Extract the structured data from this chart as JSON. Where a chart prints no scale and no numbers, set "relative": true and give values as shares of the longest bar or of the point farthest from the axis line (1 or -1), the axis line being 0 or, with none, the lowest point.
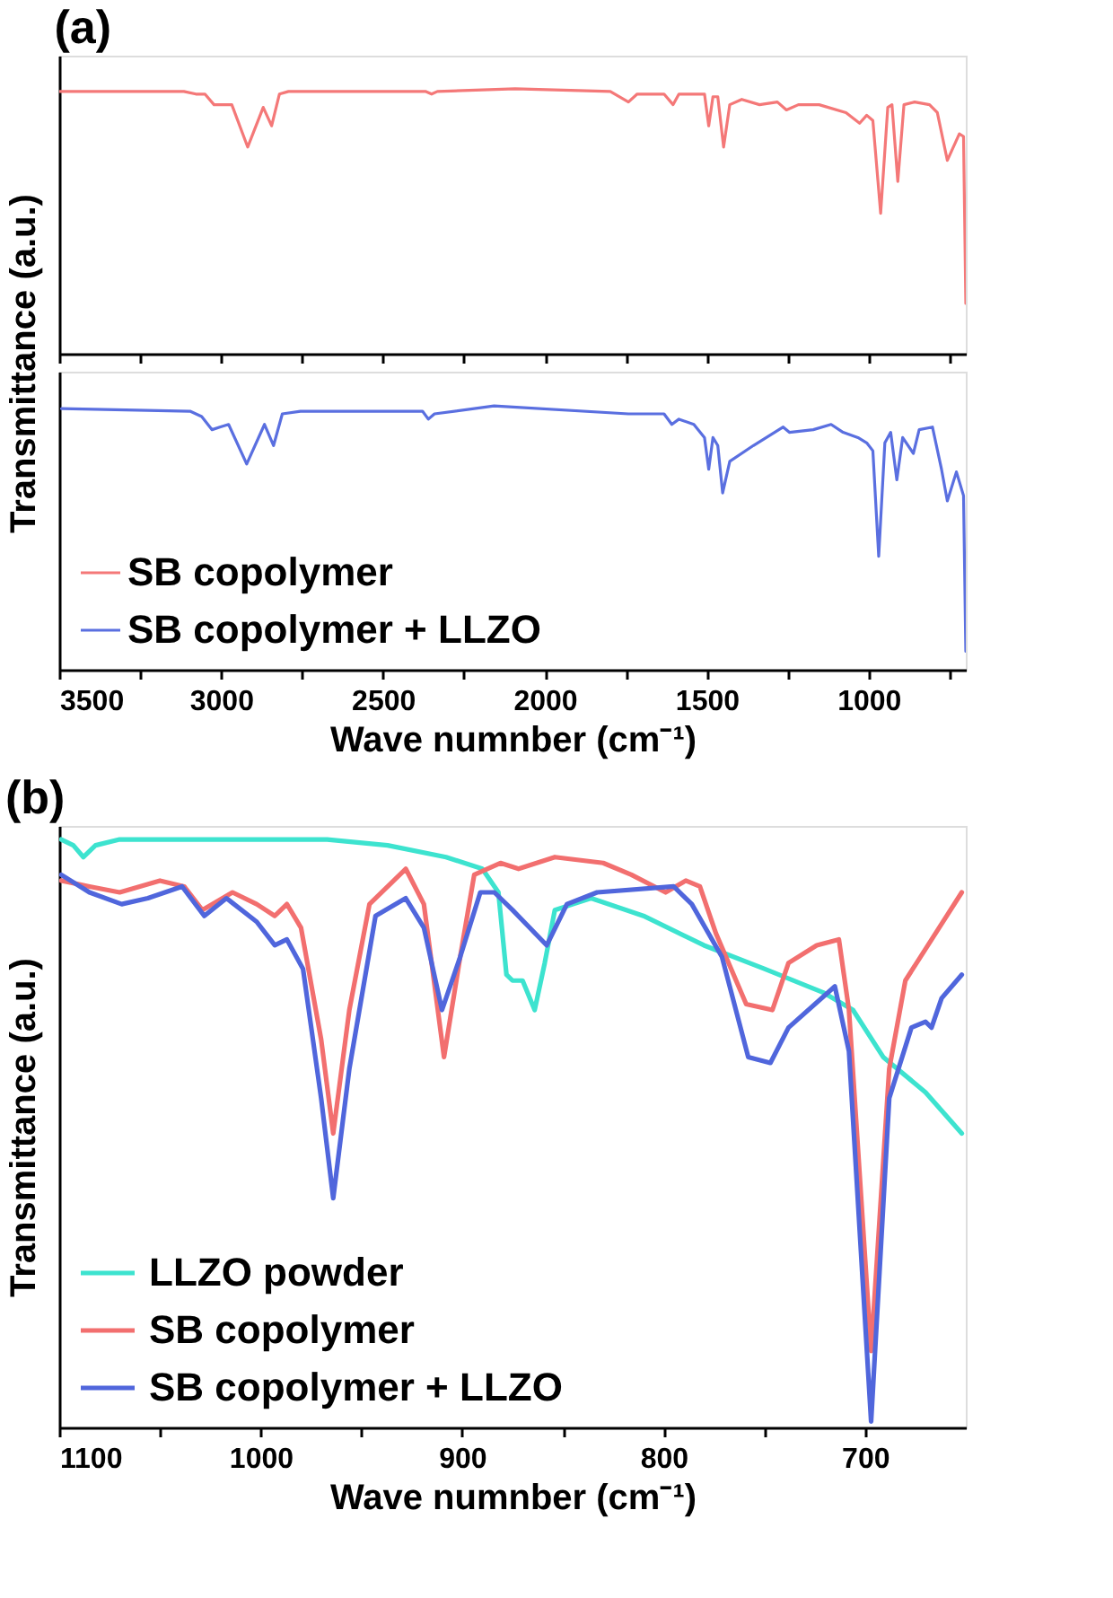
{
  "chart_data": [
    {
      "type": "line",
      "title": "(a)",
      "relative": true,
      "xlim": [
        3500,
        700
      ],
      "xticks": [
        3500,
        {
          "value": 3250,
          "label": null
        },
        3000,
        {
          "value": 2750,
          "label": null
        },
        2500,
        {
          "value": 2250,
          "label": null
        },
        2000,
        {
          "value": 1750,
          "label": null
        },
        1500,
        {
          "value": 1250,
          "label": null
        },
        1000,
        {
          "value": 750,
          "label": null
        }
      ],
      "tick_labels": false,
      "grid": false,
      "marker": "none",
      "line_style": "solid",
      "series": [
        {
          "name": "SB copolymer",
          "color": "#f47878",
          "x": [
            3500,
            3115,
            3078,
            3050,
            3022,
            2995,
            2967,
            2918,
            2870,
            2844,
            2820,
            2792,
            2369,
            2350,
            2332,
            2092,
            1798,
            1742,
            1715,
            1632,
            1604,
            1586,
            1507,
            1494,
            1481,
            1466,
            1448,
            1429,
            1392,
            1337,
            1282,
            1254,
            1217,
            1153,
            1070,
            1028,
            1006,
            987,
            963,
            941,
            928,
            910,
            891,
            858,
            812,
            788,
            757,
            720,
            707,
            700
          ],
          "values": [
            0.99,
            0.99,
            0.98,
            0.98,
            0.94,
            0.94,
            0.94,
            0.78,
            0.93,
            0.86,
            0.98,
            0.99,
            0.99,
            0.98,
            0.99,
            1.0,
            0.99,
            0.95,
            0.98,
            0.98,
            0.94,
            0.98,
            0.98,
            0.86,
            0.97,
            0.97,
            0.78,
            0.94,
            0.96,
            0.94,
            0.95,
            0.92,
            0.94,
            0.94,
            0.91,
            0.87,
            0.9,
            0.88,
            0.53,
            0.93,
            0.94,
            0.65,
            0.94,
            0.95,
            0.94,
            0.91,
            0.73,
            0.83,
            0.82,
            0.19
          ]
        }
      ]
    },
    {
      "type": "line",
      "xlabel": "Wave numnber (cm⁻¹)",
      "ylabel": "Transmittance (a.u.)",
      "relative": true,
      "xlim": [
        3500,
        700
      ],
      "xticks": [
        3500,
        {
          "value": 3250,
          "label": null
        },
        3000,
        {
          "value": 2750,
          "label": null
        },
        2500,
        {
          "value": 2250,
          "label": null
        },
        2000,
        {
          "value": 1750,
          "label": null
        },
        1500,
        {
          "value": 1250,
          "label": null
        },
        1000,
        {
          "value": 750,
          "label": null
        }
      ],
      "tick_labels": "x",
      "grid": false,
      "legend": "bottom left",
      "marker": "none",
      "line_style": "solid",
      "series": [
        {
          "name": "SB copolymer + LLZO",
          "color": "#5a6fe0",
          "x": [
            3493,
            3096,
            3060,
            3028,
            3004,
            2977,
            2921,
            2866,
            2838,
            2811,
            2755,
            2378,
            2360,
            2341,
            2157,
            1742,
            1632,
            1608,
            1586,
            1540,
            1507,
            1494,
            1481,
            1466,
            1451,
            1429,
            1356,
            1264,
            1245,
            1171,
            1116,
            1079,
            1033,
            1006,
            987,
            969,
            950,
            932,
            913,
            895,
            862,
            844,
            803,
            775,
            757,
            729,
            707,
            700
          ],
          "values": [
            0.99,
            0.98,
            0.96,
            0.91,
            0.92,
            0.93,
            0.78,
            0.93,
            0.85,
            0.97,
            0.98,
            0.98,
            0.95,
            0.97,
            1.0,
            0.97,
            0.97,
            0.93,
            0.95,
            0.93,
            0.88,
            0.76,
            0.88,
            0.85,
            0.67,
            0.79,
            0.85,
            0.92,
            0.9,
            0.91,
            0.93,
            0.9,
            0.88,
            0.86,
            0.83,
            0.43,
            0.86,
            0.9,
            0.72,
            0.88,
            0.82,
            0.91,
            0.92,
            0.76,
            0.64,
            0.75,
            0.66,
            0.07
          ]
        }
      ]
    },
    {
      "type": "line",
      "title": "(b)",
      "xlabel": "Wave numnber (cm⁻¹)",
      "ylabel": "Transmittance (a.u.)",
      "relative": true,
      "xlim": [
        1100,
        650
      ],
      "xticks": [
        1100,
        {
          "value": 1050,
          "label": null
        },
        1000,
        {
          "value": 950,
          "label": null
        },
        900,
        {
          "value": 850,
          "label": null
        },
        800,
        {
          "value": 750,
          "label": null
        },
        700
      ],
      "tick_labels": "x",
      "grid": false,
      "legend": "bottom left",
      "marker": "none",
      "line_style": "solid",
      "series": [
        {
          "name": "LLZO powder",
          "color": "#3de3cf",
          "x": [
            1099,
            1093,
            1088,
            1082,
            1070,
            967,
            937,
            908,
            890,
            882,
            878,
            875,
            870,
            864,
            859,
            854,
            845,
            836,
            810,
            780,
            750,
            721,
            706,
            691,
            670,
            652
          ],
          "values": [
            1.0,
            0.99,
            0.97,
            0.99,
            1.0,
            1.0,
            0.99,
            0.97,
            0.95,
            0.91,
            0.77,
            0.76,
            0.76,
            0.71,
            0.79,
            0.88,
            0.89,
            0.9,
            0.87,
            0.82,
            0.78,
            0.74,
            0.71,
            0.63,
            0.57,
            0.5
          ]
        },
        {
          "name": "SB copolymer",
          "color": "#f26f6f",
          "x": [
            1099,
            1085,
            1070,
            1060,
            1050,
            1038,
            1029,
            1014,
            1002,
            993,
            987,
            980,
            970,
            964,
            956,
            946,
            928,
            919,
            909,
            901,
            894,
            881,
            872,
            854,
            830,
            816,
            799,
            789,
            782,
            774,
            759,
            746,
            738,
            724,
            713,
            708,
            697,
            688,
            680,
            652
          ],
          "values": [
            0.93,
            0.92,
            0.91,
            0.92,
            0.93,
            0.92,
            0.88,
            0.91,
            0.89,
            0.87,
            0.89,
            0.85,
            0.66,
            0.5,
            0.71,
            0.89,
            0.95,
            0.89,
            0.63,
            0.8,
            0.94,
            0.96,
            0.95,
            0.97,
            0.96,
            0.94,
            0.91,
            0.93,
            0.92,
            0.84,
            0.72,
            0.71,
            0.79,
            0.82,
            0.83,
            0.71,
            0.13,
            0.61,
            0.76,
            0.91
          ]
        },
        {
          "name": "SB copolymer + LLZO",
          "color": "#5066dc",
          "x": [
            1099,
            1085,
            1069,
            1056,
            1039,
            1028,
            1017,
            1002,
            993,
            987,
            979,
            970,
            964,
            956,
            943,
            928,
            919,
            910,
            901,
            891,
            884,
            875,
            858,
            848,
            833,
            795,
            786,
            771,
            758,
            747,
            738,
            715,
            708,
            697,
            688,
            677,
            670,
            667,
            662,
            652
          ],
          "values": [
            0.94,
            0.91,
            0.89,
            0.9,
            0.92,
            0.87,
            0.9,
            0.86,
            0.82,
            0.83,
            0.78,
            0.56,
            0.39,
            0.61,
            0.87,
            0.9,
            0.85,
            0.71,
            0.8,
            0.91,
            0.91,
            0.88,
            0.82,
            0.89,
            0.91,
            0.92,
            0.89,
            0.8,
            0.63,
            0.62,
            0.68,
            0.75,
            0.64,
            0.01,
            0.56,
            0.68,
            0.69,
            0.68,
            0.73,
            0.77
          ]
        }
      ]
    }
  ]
}
